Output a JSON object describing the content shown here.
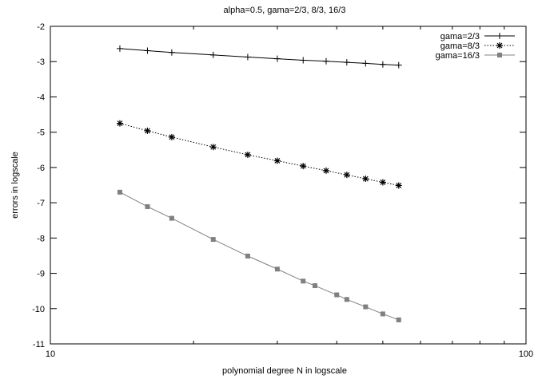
{
  "chart_data": {
    "type": "line",
    "title": "alpha=0.5, gama=2/3, 8/3, 16/3",
    "xlabel": "polynomial degree  N in logscale",
    "ylabel": "errors in logscale",
    "x_scale": "log",
    "xlim": [
      10,
      100
    ],
    "ylim": [
      -11,
      -2
    ],
    "x_ticks": [
      10,
      100
    ],
    "x_tick_labels": [
      "10",
      "100"
    ],
    "y_ticks": [
      -2,
      -3,
      -4,
      -5,
      -6,
      -7,
      -8,
      -9,
      -10,
      -11
    ],
    "y_tick_labels": [
      "-2",
      "-3",
      "-4",
      "-5",
      "-6",
      "-7",
      "-8",
      "-9",
      "-10",
      "-11"
    ],
    "grid": false,
    "legend_position": "top-right",
    "series": [
      {
        "name": "gama=2/3",
        "marker": "plus",
        "line_style": "solid",
        "color": "#000000",
        "x": [
          14,
          16,
          18,
          22,
          26,
          30,
          34,
          38,
          42,
          46,
          50,
          54
        ],
        "y": [
          -2.63,
          -2.69,
          -2.74,
          -2.81,
          -2.87,
          -2.92,
          -2.96,
          -2.99,
          -3.02,
          -3.05,
          -3.08,
          -3.1
        ]
      },
      {
        "name": "gama=8/3",
        "marker": "star",
        "line_style": "dotted",
        "color": "#000000",
        "x": [
          14,
          16,
          18,
          22,
          26,
          30,
          34,
          38,
          42,
          46,
          50,
          54
        ],
        "y": [
          -4.75,
          -4.96,
          -5.14,
          -5.42,
          -5.64,
          -5.81,
          -5.96,
          -6.09,
          -6.21,
          -6.32,
          -6.42,
          -6.51
        ]
      },
      {
        "name": "gama=16/3",
        "marker": "square",
        "line_style": "solid",
        "color": "#808080",
        "x": [
          14,
          16,
          18,
          22,
          26,
          30,
          34,
          36,
          40,
          42,
          46,
          50,
          54
        ],
        "y": [
          -6.7,
          -7.11,
          -7.44,
          -8.04,
          -8.51,
          -8.88,
          -9.22,
          -9.35,
          -9.61,
          -9.74,
          -9.95,
          -10.15,
          -10.32
        ]
      }
    ]
  }
}
